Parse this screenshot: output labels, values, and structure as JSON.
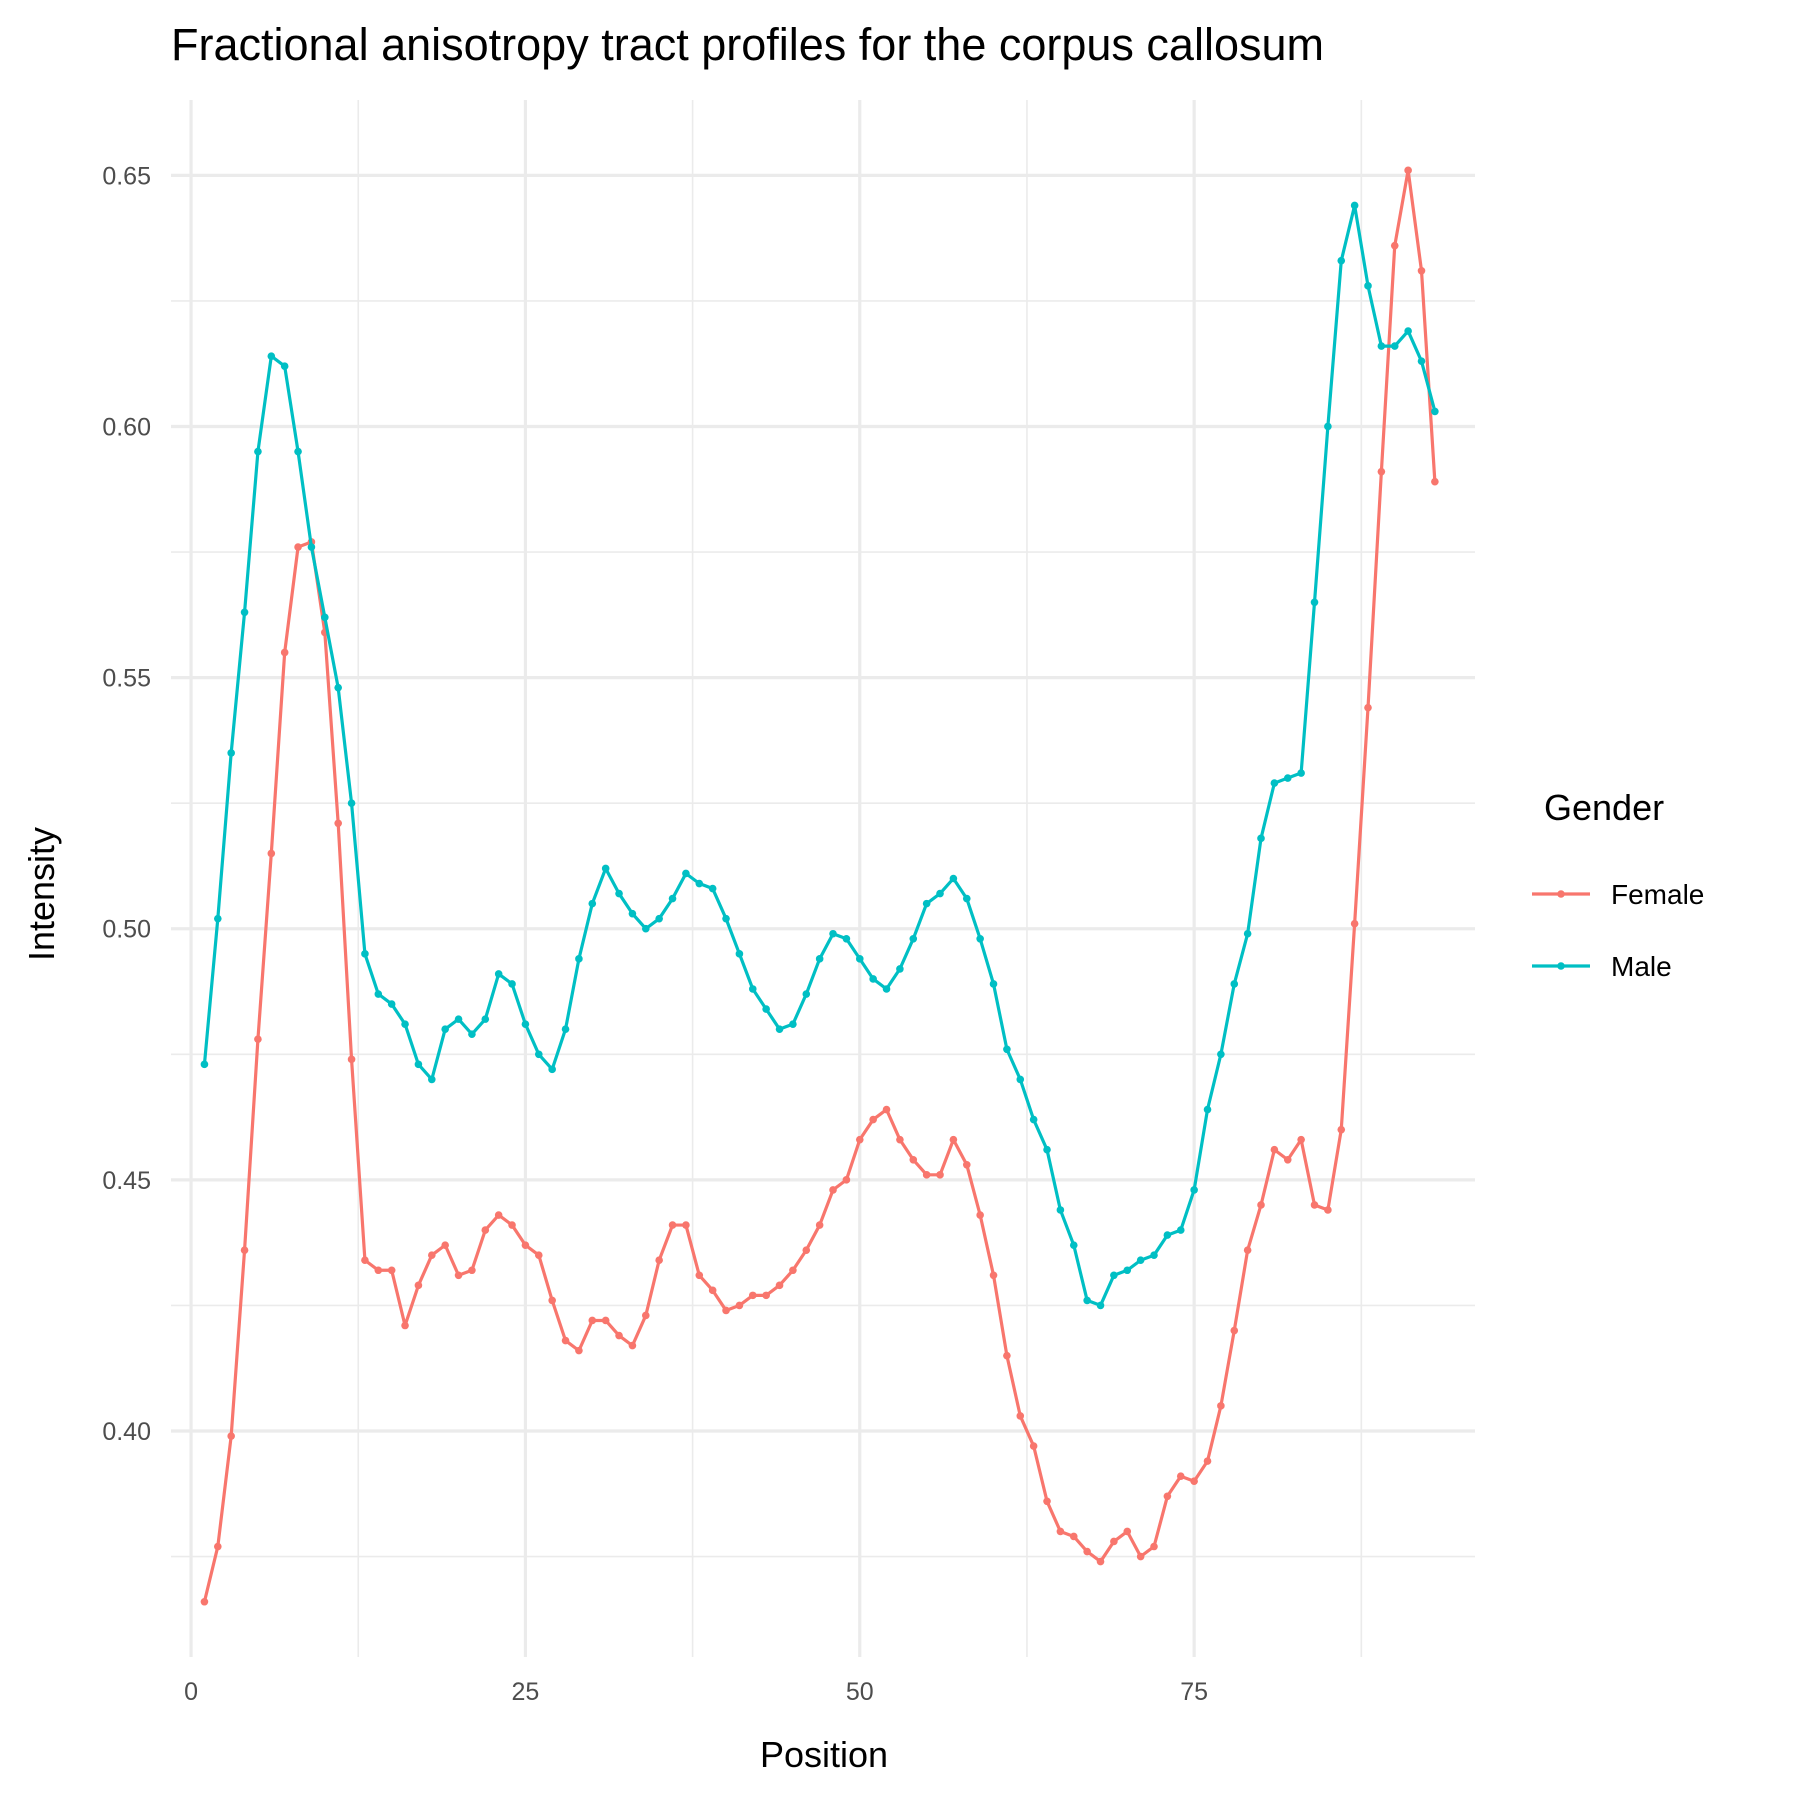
{
  "chart_data": {
    "type": "line",
    "title": "Fractional anisotropy tract profiles for the corpus callosum",
    "xlabel": "Position",
    "ylabel": "Intensity",
    "xlim": [
      -1.5,
      96
    ],
    "ylim": [
      0.355,
      0.665
    ],
    "x_ticks": [
      0,
      25,
      50,
      75
    ],
    "x_tick_labels": [
      "0",
      "25",
      "50",
      "75"
    ],
    "y_ticks": [
      0.4,
      0.45,
      0.5,
      0.55,
      0.6,
      0.65
    ],
    "y_tick_labels": [
      "0.40",
      "0.45",
      "0.50",
      "0.55",
      "0.60",
      "0.65"
    ],
    "x_minor_ticks": [
      12.5,
      37.5,
      62.5,
      87.5
    ],
    "y_minor_ticks": [
      0.375,
      0.425,
      0.475,
      0.525,
      0.575,
      0.625
    ],
    "grid": true,
    "legend": {
      "title": "Gender",
      "position": "right"
    },
    "series": [
      {
        "name": "Female",
        "color": "#F8766D",
        "x": [
          1,
          2,
          3,
          4,
          5,
          6,
          7,
          8,
          9,
          10,
          11,
          12,
          13,
          14,
          15,
          16,
          17,
          18,
          19,
          20,
          21,
          22,
          23,
          24,
          25,
          26,
          27,
          28,
          29,
          30,
          31,
          32,
          33,
          34,
          35,
          36,
          37,
          38,
          39,
          40,
          41,
          42,
          43,
          44,
          45,
          46,
          47,
          48,
          49,
          50,
          51,
          52,
          53,
          54,
          55,
          56,
          57,
          58,
          59,
          60,
          61,
          62,
          63,
          64,
          65,
          66,
          67,
          68,
          69,
          70,
          71,
          72,
          73,
          74,
          75,
          76,
          77,
          78,
          79,
          80,
          81,
          82,
          83,
          84,
          85,
          86,
          87,
          88,
          89,
          90,
          91,
          92,
          93
        ],
        "values": [
          0.366,
          0.377,
          0.399,
          0.436,
          0.478,
          0.515,
          0.555,
          0.576,
          0.577,
          0.559,
          0.521,
          0.474,
          0.434,
          0.432,
          0.432,
          0.421,
          0.429,
          0.435,
          0.437,
          0.431,
          0.432,
          0.44,
          0.443,
          0.441,
          0.437,
          0.435,
          0.426,
          0.418,
          0.416,
          0.422,
          0.422,
          0.419,
          0.417,
          0.423,
          0.434,
          0.441,
          0.441,
          0.431,
          0.428,
          0.424,
          0.425,
          0.427,
          0.427,
          0.429,
          0.432,
          0.436,
          0.441,
          0.448,
          0.45,
          0.458,
          0.462,
          0.464,
          0.458,
          0.454,
          0.451,
          0.451,
          0.458,
          0.453,
          0.443,
          0.431,
          0.415,
          0.403,
          0.397,
          0.386,
          0.38,
          0.379,
          0.376,
          0.374,
          0.378,
          0.38,
          0.375,
          0.377,
          0.387,
          0.391,
          0.39,
          0.394,
          0.405,
          0.42,
          0.436,
          0.445,
          0.456,
          0.454,
          0.458,
          0.445,
          0.444,
          0.46,
          0.501,
          0.544,
          0.591,
          0.636,
          0.651,
          0.631,
          0.589
        ]
      },
      {
        "name": "Male",
        "color": "#00BFC4",
        "x": [
          1,
          2,
          3,
          4,
          5,
          6,
          7,
          8,
          9,
          10,
          11,
          12,
          13,
          14,
          15,
          16,
          17,
          18,
          19,
          20,
          21,
          22,
          23,
          24,
          25,
          26,
          27,
          28,
          29,
          30,
          31,
          32,
          33,
          34,
          35,
          36,
          37,
          38,
          39,
          40,
          41,
          42,
          43,
          44,
          45,
          46,
          47,
          48,
          49,
          50,
          51,
          52,
          53,
          54,
          55,
          56,
          57,
          58,
          59,
          60,
          61,
          62,
          63,
          64,
          65,
          66,
          67,
          68,
          69,
          70,
          71,
          72,
          73,
          74,
          75,
          76,
          77,
          78,
          79,
          80,
          81,
          82,
          83,
          84,
          85,
          86,
          87,
          88,
          89,
          90,
          91,
          92,
          93
        ],
        "values": [
          0.473,
          0.502,
          0.535,
          0.563,
          0.595,
          0.614,
          0.612,
          0.595,
          0.576,
          0.562,
          0.548,
          0.525,
          0.495,
          0.487,
          0.485,
          0.481,
          0.473,
          0.47,
          0.48,
          0.482,
          0.479,
          0.482,
          0.491,
          0.489,
          0.481,
          0.475,
          0.472,
          0.48,
          0.494,
          0.505,
          0.512,
          0.507,
          0.503,
          0.5,
          0.502,
          0.506,
          0.511,
          0.509,
          0.508,
          0.502,
          0.495,
          0.488,
          0.484,
          0.48,
          0.481,
          0.487,
          0.494,
          0.499,
          0.498,
          0.494,
          0.49,
          0.488,
          0.492,
          0.498,
          0.505,
          0.507,
          0.51,
          0.506,
          0.498,
          0.489,
          0.476,
          0.47,
          0.462,
          0.456,
          0.444,
          0.437,
          0.426,
          0.425,
          0.431,
          0.432,
          0.434,
          0.435,
          0.439,
          0.44,
          0.448,
          0.464,
          0.475,
          0.489,
          0.499,
          0.518,
          0.529,
          0.53,
          0.531,
          0.565,
          0.6,
          0.633,
          0.644,
          0.628,
          0.616,
          0.616,
          0.619,
          0.613,
          0.603
        ]
      }
    ]
  }
}
